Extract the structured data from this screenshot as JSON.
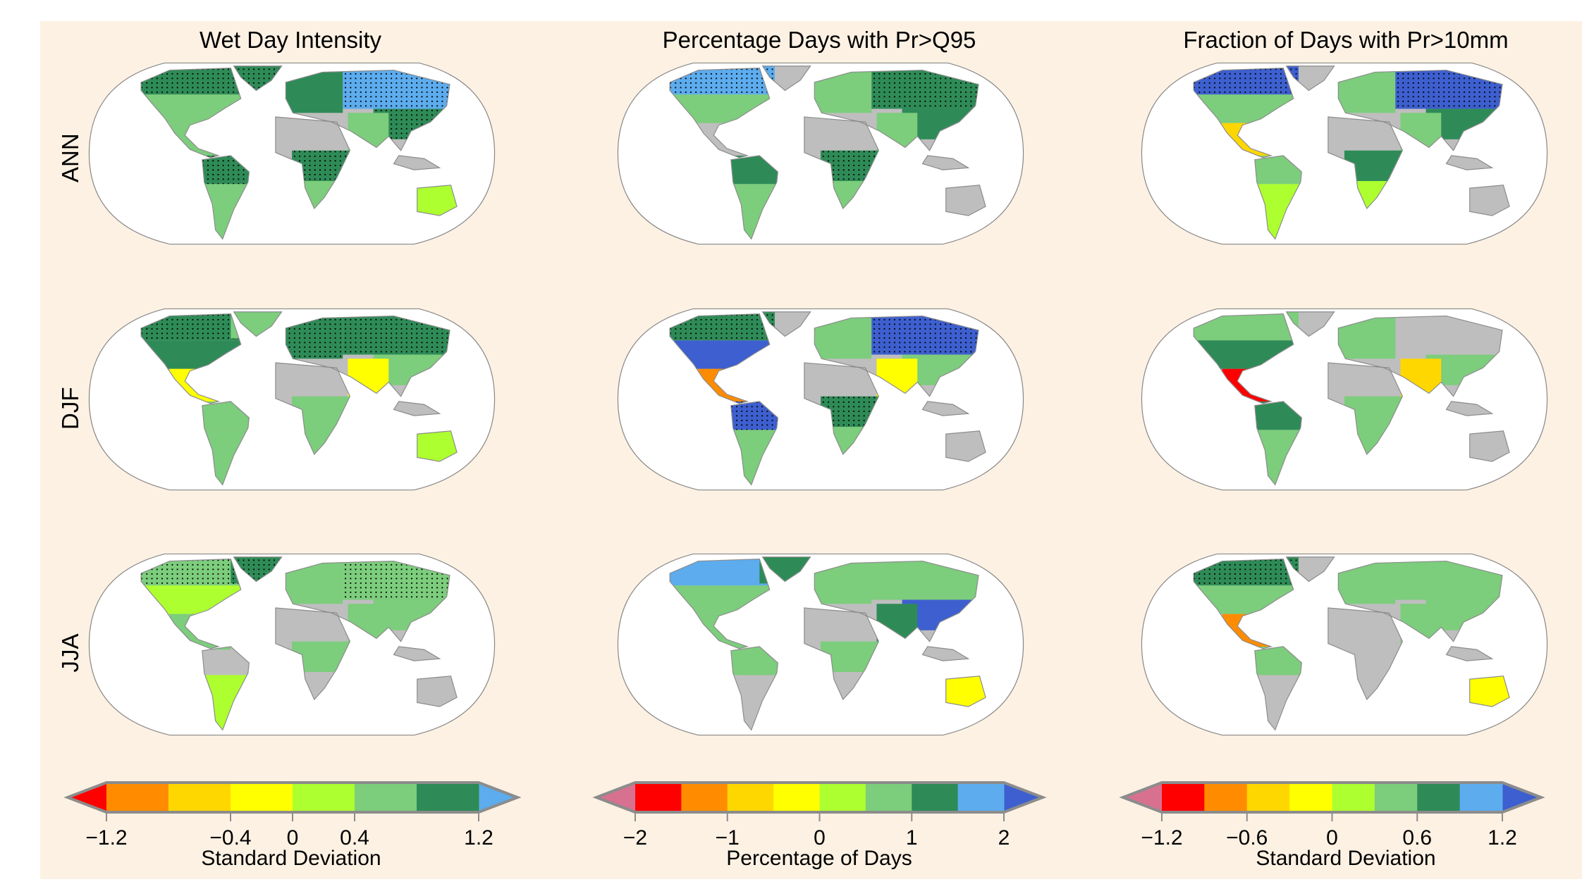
{
  "columns": [
    {
      "title": "Wet Day Intensity"
    },
    {
      "title": "Percentage Days with Pr>Q95"
    },
    {
      "title": "Fraction of Days with Pr>10mm"
    }
  ],
  "rows": [
    {
      "label": "ANN"
    },
    {
      "label": "DJF"
    },
    {
      "label": "JJA"
    }
  ],
  "palette": {
    "pink": "#d8718f",
    "red": "#ff0000",
    "orange": "#ff8c00",
    "gold": "#ffd700",
    "yellow": "#ffff00",
    "lime": "#adff2f",
    "lightgreen": "#7ccd7c",
    "darkgreen": "#2e8b57",
    "lightblue": "#5cacee",
    "blue": "#3d5fcf",
    "land_gray": "#bebebe",
    "coast": "#8c8c8c",
    "stipple": "#000000"
  },
  "colorbars": [
    {
      "label": "Standard Deviation",
      "boundaries": [
        -1.2,
        -0.8,
        -0.4,
        0,
        0.4,
        0.8,
        1.2
      ],
      "colors": [
        "orange",
        "gold",
        "yellow",
        "lime",
        "lightgreen",
        "darkgreen"
      ],
      "under": "red",
      "over": "lightblue",
      "ticks": [
        -1.2,
        -0.4,
        0,
        0.4,
        1.2
      ],
      "tick_labels": [
        "−1.2",
        "−0.4",
        "0",
        "0.4",
        "1.2"
      ]
    },
    {
      "label": "Percentage of Days",
      "boundaries": [
        -2,
        -1.5,
        -1,
        -0.5,
        0,
        0.5,
        1,
        1.5,
        2
      ],
      "colors": [
        "red",
        "orange",
        "gold",
        "yellow",
        "lime",
        "lightgreen",
        "darkgreen",
        "lightblue"
      ],
      "under": "pink",
      "over": "blue",
      "ticks": [
        -2,
        -1,
        0,
        1,
        2
      ],
      "tick_labels": [
        "−2",
        "−1",
        "0",
        "1",
        "2"
      ]
    },
    {
      "label": "Standard Deviation",
      "boundaries": [
        -1.2,
        -0.9,
        -0.6,
        -0.3,
        0,
        0.3,
        0.6,
        0.9,
        1.2
      ],
      "colors": [
        "red",
        "orange",
        "gold",
        "yellow",
        "lime",
        "lightgreen",
        "darkgreen",
        "lightblue"
      ],
      "under": "pink",
      "over": "blue",
      "ticks": [
        -1.2,
        -0.6,
        0,
        0.6,
        1.2
      ],
      "tick_labels": [
        "−1.2",
        "−0.6",
        "0",
        "0.6",
        "1.2"
      ]
    }
  ],
  "panels": [
    [
      {
        "canada": "darkgreen*",
        "greenland": "darkgreen*",
        "usa": "lightgreen",
        "central_america": "lightgreen",
        "amazon": "darkgreen*",
        "south_sa": "lightgreen",
        "europe": "darkgreen",
        "siberia": "lightblue*",
        "east_asia": "darkgreen*",
        "south_asia": "lightgreen",
        "central_africa": "darkgreen*",
        "southern_africa": "lightgreen",
        "australia": "lime"
      },
      {
        "canada": "lightblue*",
        "usa": "lightgreen",
        "amazon": "darkgreen",
        "south_sa": "lightgreen",
        "europe": "lightgreen",
        "siberia": "darkgreen*",
        "east_asia": "darkgreen",
        "south_asia": "lightgreen",
        "central_africa": "darkgreen*",
        "southern_africa": "lightgreen"
      },
      {
        "canada": "blue*",
        "usa": "lightgreen",
        "central_america": "gold",
        "amazon": "lightgreen",
        "south_sa": "lime",
        "europe": "lightgreen",
        "siberia": "blue*",
        "east_asia": "darkgreen",
        "south_asia": "lightgreen",
        "central_africa": "darkgreen",
        "southern_africa": "lime"
      }
    ],
    [
      {
        "canada": "darkgreen*",
        "greenland": "lightgreen",
        "usa": "darkgreen",
        "central_america": "yellow",
        "amazon": "lightgreen",
        "south_sa": "lightgreen",
        "europe": "darkgreen*",
        "siberia": "darkgreen*",
        "east_asia": "lightgreen",
        "south_asia": "yellow",
        "central_africa": "lightgreen",
        "southern_africa": "lightgreen",
        "australia": "lime"
      },
      {
        "canada": "darkgreen*",
        "usa": "blue",
        "central_america": "orange",
        "amazon": "blue*",
        "south_sa": "lightgreen",
        "europe": "lightgreen",
        "siberia": "blue*",
        "east_asia": "lightgreen",
        "south_asia": "yellow",
        "central_africa": "darkgreen*",
        "southern_africa": "lightgreen"
      },
      {
        "canada": "lightgreen",
        "usa": "darkgreen",
        "central_america": "red",
        "amazon": "darkgreen",
        "south_sa": "lightgreen",
        "europe": "lightgreen",
        "east_asia": "lightgreen",
        "south_asia": "gold",
        "central_africa": "lightgreen",
        "southern_africa": "lightgreen"
      }
    ],
    [
      {
        "canada": "lightgreen*",
        "greenland": "darkgreen*",
        "usa": "lime",
        "central_america": "lightgreen",
        "south_sa": "lime",
        "europe": "lightgreen",
        "siberia": "lightgreen*",
        "east_asia": "lightgreen",
        "south_asia": "lightgreen",
        "central_africa": "lightgreen"
      },
      {
        "canada": "lightblue",
        "greenland": "darkgreen",
        "usa": "lightgreen",
        "central_america": "lightgreen",
        "amazon": "lightgreen",
        "europe": "lightgreen",
        "siberia": "lightgreen",
        "east_asia": "blue",
        "south_asia": "darkgreen",
        "central_africa": "lightgreen",
        "australia": "yellow"
      },
      {
        "canada": "darkgreen*",
        "usa": "lightgreen",
        "central_america": "orange",
        "amazon": "lightgreen",
        "europe": "lightgreen",
        "siberia": "lightgreen",
        "east_asia": "lightgreen",
        "south_asia": "lightgreen",
        "australia": "yellow"
      }
    ]
  ]
}
